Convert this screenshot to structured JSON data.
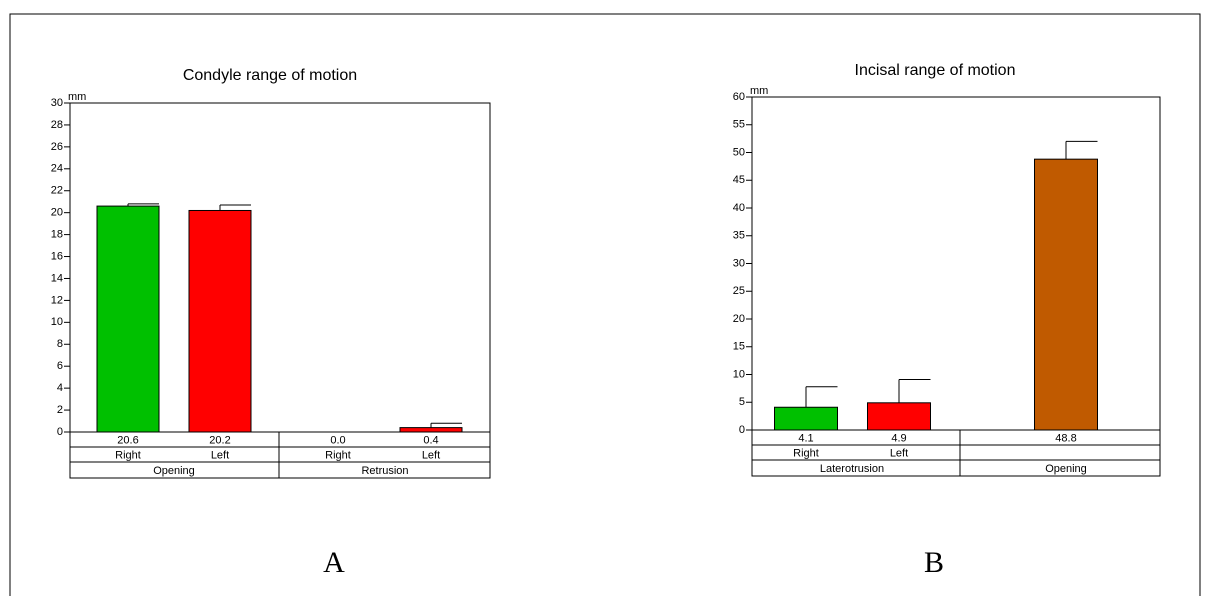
{
  "chart_data": [
    {
      "type": "bar",
      "title": "Condyle range of motion",
      "y_unit": "mm",
      "categories": [
        "Right",
        "Left",
        "Right",
        "Left"
      ],
      "groups": [
        "Opening",
        "Retrusion"
      ],
      "values": [
        20.6,
        20.2,
        0.0,
        0.4
      ],
      "value_labels": [
        "20.6",
        "20.2",
        "0.0",
        "0.4"
      ],
      "errors": [
        0.2,
        0.5,
        0,
        0.4
      ],
      "colors": [
        "#00c000",
        "#ff0000",
        "#00c000",
        "#ff0000"
      ],
      "ylim": [
        0,
        30
      ],
      "yticks": [
        0,
        2,
        4,
        6,
        8,
        10,
        12,
        14,
        16,
        18,
        20,
        22,
        24,
        26,
        28,
        30
      ],
      "panel_label": "A"
    },
    {
      "type": "bar",
      "title": "Incisal range of motion",
      "y_unit": "mm",
      "categories": [
        "Right",
        "Left",
        null
      ],
      "groups": [
        "Laterotrusion",
        "Opening"
      ],
      "values": [
        4.1,
        4.9,
        48.8
      ],
      "errors": [
        3.7,
        4.2,
        3.2
      ],
      "colors": [
        "#00c000",
        "#ff0000",
        "#c05a00"
      ],
      "ylim": [
        0,
        60
      ],
      "yticks": [
        0,
        5,
        10,
        15,
        20,
        25,
        30,
        35,
        40,
        45,
        50,
        55,
        60
      ],
      "panel_label": "B"
    }
  ]
}
